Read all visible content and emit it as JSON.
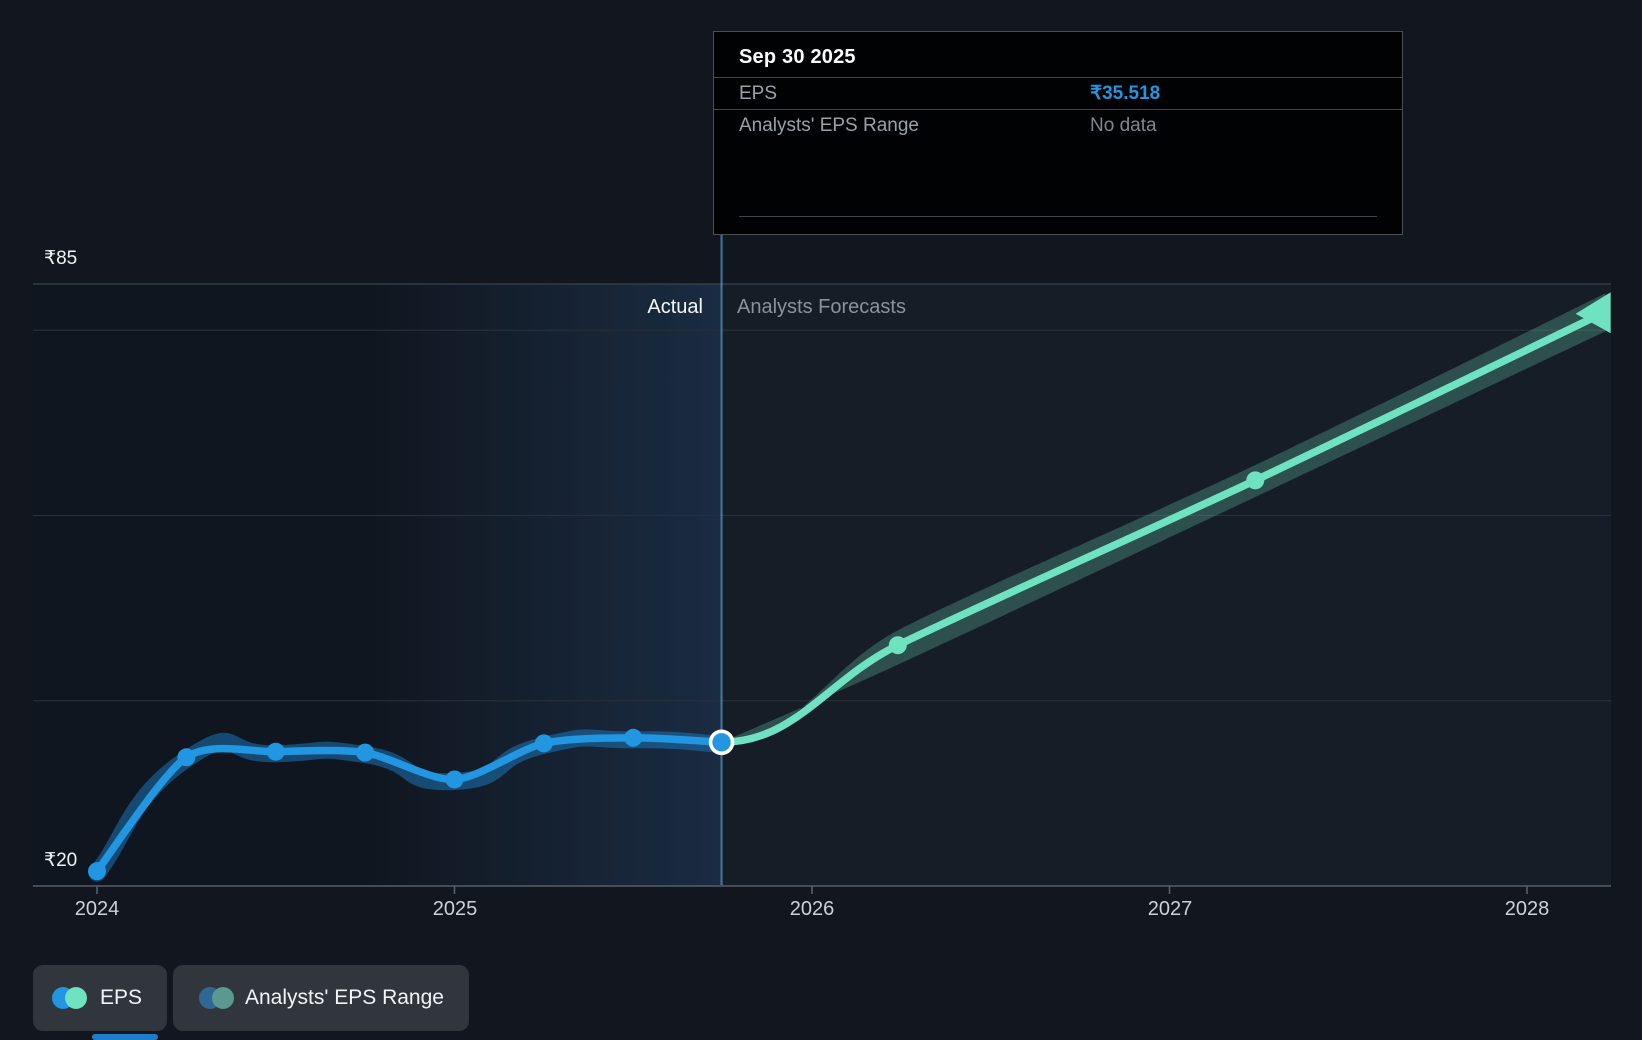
{
  "header_band": {
    "actual_label": "Actual",
    "forecast_label": "Analysts Forecasts"
  },
  "y_axis": {
    "top_label": "₹85",
    "bottom_label": "₹20"
  },
  "x_axis": {
    "ticks": [
      "2024",
      "2025",
      "2026",
      "2027",
      "2028"
    ]
  },
  "tooltip": {
    "title": "Sep 30 2025",
    "rows": [
      {
        "label": "EPS",
        "value": "₹35.518"
      },
      {
        "label": "Analysts' EPS Range",
        "value": "No data"
      }
    ]
  },
  "legend": [
    {
      "label": "EPS",
      "dot_colors": [
        "#2296e0",
        "#6fe2c1"
      ]
    },
    {
      "label": "Analysts' EPS Range",
      "dot_colors": [
        "#2f6795",
        "#5b988f"
      ]
    }
  ],
  "colors": {
    "eps_line": "#2296e0",
    "eps_band": "rgba(27,116,180,0.55)",
    "forecast_line": "#6fe2c1",
    "forecast_band": "rgba(111,226,193,0.26)",
    "divider": "rgba(100,180,230,0.55)",
    "gridline": "#272e38",
    "gridline_top": "#3a434e",
    "axis_line": "#565f69",
    "plot_bg": "#161d27",
    "past_panel_bg": "#10161f",
    "highlight_glow": "#1a2c42",
    "tooltip_value_accent": "#2296e0"
  },
  "chart_data": {
    "type": "line",
    "title": "EPS actual vs analysts forecast (₹)",
    "currency": "₹",
    "ylim": [
      20,
      85
    ],
    "y_axis_labels_shown": {
      "85": "₹85",
      "20": "₹20"
    },
    "y_gridline_values": [
      85,
      80,
      60,
      40,
      20
    ],
    "x_ticks": [
      2024,
      2025,
      2026,
      2027,
      2028
    ],
    "divider_x": 2025.747,
    "divider_date": "Sep 30 2025",
    "highlight_span": [
      2024.75,
      2025.747
    ],
    "series": [
      {
        "name": "EPS",
        "kind": "actual",
        "color": "#2296e0",
        "x": [
          2024.0,
          2024.25,
          2024.5,
          2024.75,
          2025.0,
          2025.25,
          2025.5,
          2025.747
        ],
        "values": [
          21.6,
          33.9,
          34.5,
          34.4,
          31.5,
          35.4,
          36.0,
          35.518
        ]
      },
      {
        "name": "Analysts Forecast EPS",
        "kind": "forecast",
        "color": "#6fe2c1",
        "x": [
          2025.747,
          2026.24,
          2027.24,
          2028.22
        ],
        "values": [
          35.518,
          46.0,
          63.8,
          82.0
        ],
        "range_high": [
          35.518,
          47.6,
          65.45,
          84.0
        ],
        "range_low": [
          35.518,
          43.9,
          62.0,
          79.9
        ]
      }
    ]
  }
}
